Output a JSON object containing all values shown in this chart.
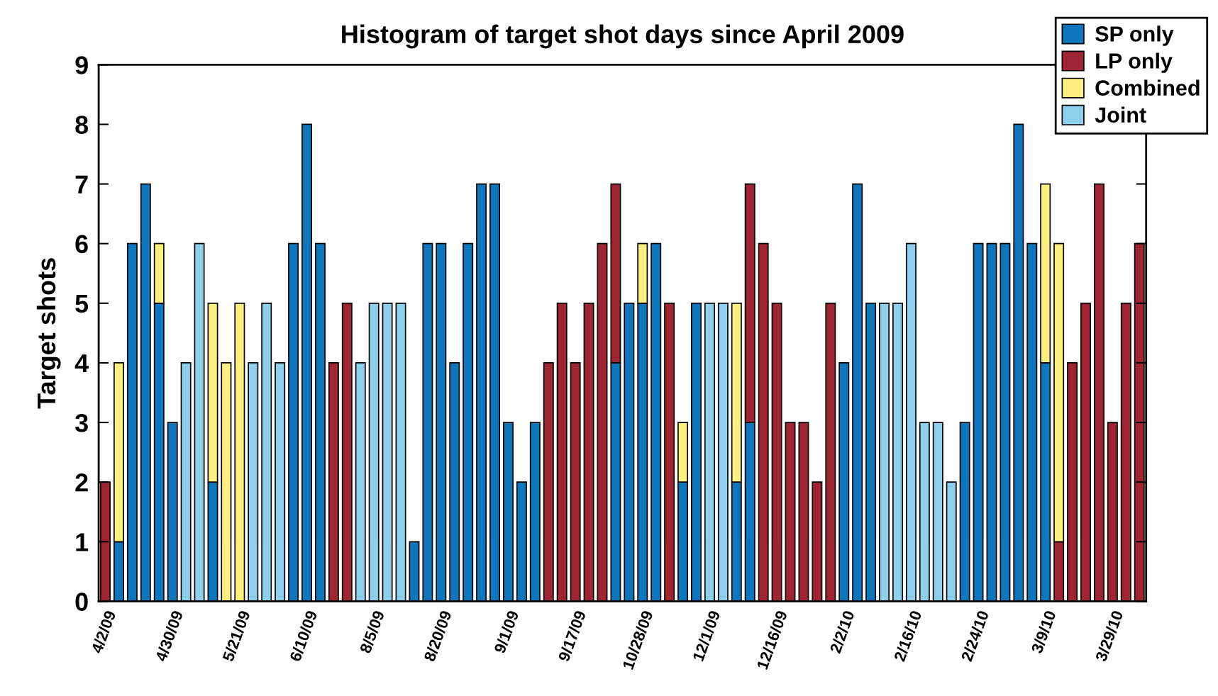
{
  "chart_data": {
    "type": "bar",
    "stacked": true,
    "title": "Histogram of target shot days since April 2009",
    "ylabel": "Target shots",
    "categories": [
      "4/2/09",
      null,
      null,
      null,
      null,
      "4/30/09",
      null,
      null,
      null,
      null,
      "5/21/09",
      null,
      null,
      null,
      null,
      "6/10/09",
      null,
      null,
      null,
      null,
      "8/5/09",
      null,
      null,
      null,
      null,
      "8/20/09",
      null,
      null,
      null,
      null,
      "9/1/09",
      null,
      null,
      null,
      null,
      "9/17/09",
      null,
      null,
      null,
      null,
      "10/28/09",
      null,
      null,
      null,
      null,
      "12/1/09",
      null,
      null,
      null,
      null,
      "12/16/09",
      null,
      null,
      null,
      null,
      "2/2/10",
      null,
      null,
      null,
      null,
      "2/16/10",
      null,
      null,
      null,
      null,
      "2/24/10",
      null,
      null,
      null,
      null,
      "3/9/10",
      null,
      null,
      null,
      null,
      "3/29/10",
      null,
      null
    ],
    "series": [
      {
        "name": "SP only",
        "color": "#0e76bc",
        "values": [
          null,
          1,
          6,
          7,
          5,
          3,
          null,
          null,
          2,
          null,
          null,
          null,
          null,
          null,
          6,
          8,
          6,
          null,
          null,
          null,
          null,
          null,
          null,
          1,
          6,
          6,
          4,
          6,
          7,
          7,
          3,
          2,
          3,
          null,
          null,
          null,
          null,
          null,
          4,
          5,
          5,
          6,
          null,
          2,
          5,
          null,
          null,
          2,
          3,
          null,
          null,
          null,
          null,
          null,
          null,
          4,
          7,
          5,
          null,
          null,
          null,
          null,
          null,
          null,
          3,
          6,
          6,
          6,
          8,
          6,
          4,
          null,
          null,
          null,
          null,
          null,
          null,
          null
        ]
      },
      {
        "name": "LP only",
        "color": "#a02532",
        "values": [
          2,
          null,
          null,
          null,
          null,
          null,
          null,
          null,
          null,
          null,
          null,
          null,
          null,
          null,
          null,
          null,
          null,
          4,
          5,
          null,
          null,
          null,
          null,
          null,
          null,
          null,
          null,
          null,
          null,
          null,
          null,
          null,
          null,
          4,
          5,
          4,
          5,
          6,
          3,
          null,
          null,
          null,
          5,
          null,
          null,
          null,
          null,
          null,
          4,
          6,
          5,
          3,
          3,
          2,
          5,
          null,
          null,
          null,
          null,
          null,
          null,
          null,
          null,
          null,
          null,
          null,
          null,
          null,
          null,
          null,
          null,
          1,
          4,
          5,
          7,
          3,
          5,
          6
        ]
      },
      {
        "name": "Combined",
        "color": "#fdf07e",
        "values": [
          null,
          3,
          null,
          null,
          1,
          null,
          null,
          null,
          3,
          4,
          5,
          null,
          null,
          null,
          null,
          null,
          null,
          null,
          null,
          null,
          null,
          null,
          null,
          null,
          null,
          null,
          null,
          null,
          null,
          null,
          null,
          null,
          null,
          null,
          null,
          null,
          null,
          null,
          null,
          null,
          1,
          null,
          null,
          1,
          null,
          null,
          null,
          3,
          null,
          null,
          null,
          null,
          null,
          null,
          null,
          null,
          null,
          null,
          null,
          null,
          null,
          null,
          null,
          null,
          null,
          null,
          null,
          null,
          null,
          null,
          3,
          5,
          null,
          null,
          null,
          null,
          null,
          null
        ]
      },
      {
        "name": "Joint",
        "color": "#8ecfeb",
        "values": [
          null,
          null,
          null,
          null,
          null,
          null,
          4,
          6,
          null,
          null,
          null,
          4,
          5,
          4,
          null,
          null,
          null,
          null,
          null,
          4,
          5,
          5,
          5,
          null,
          null,
          null,
          null,
          null,
          null,
          null,
          null,
          null,
          null,
          null,
          null,
          null,
          null,
          null,
          null,
          null,
          null,
          null,
          null,
          null,
          null,
          5,
          5,
          null,
          null,
          null,
          null,
          null,
          null,
          null,
          null,
          null,
          null,
          null,
          5,
          5,
          6,
          3,
          3,
          2,
          null,
          null,
          null,
          null,
          null,
          null,
          null,
          null,
          null,
          null,
          null,
          null,
          null,
          null
        ]
      }
    ],
    "ylim": [
      0,
      9
    ],
    "yticks": [
      0,
      1,
      2,
      3,
      4,
      5,
      6,
      7,
      8,
      9
    ],
    "legend": "top right",
    "grid": false
  }
}
